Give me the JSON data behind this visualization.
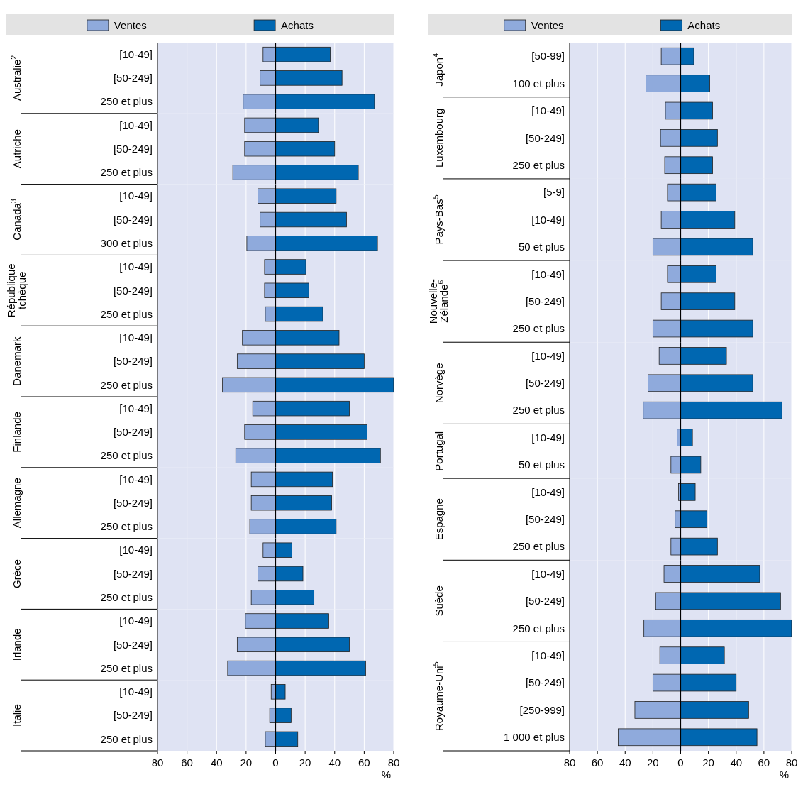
{
  "chart_data": [
    {
      "type": "bar",
      "orientation": "horizontal",
      "stacked": true,
      "ylabel": "Australie$^{2}$",
      "categories": [
        "[10-49]",
        "[50-249]",
        "250 et plus"
      ],
      "series": [
        {
          "name": "Ventes",
          "color": "#8faadc",
          "values": [
            -8.5,
            -10.5,
            -22
          ]
        },
        {
          "name": "Achats",
          "color": "#0067b1",
          "values": [
            37,
            45,
            67
          ]
        }
      ],
      "xlim": [
        -80,
        80
      ],
      "xticks": [
        -80,
        -60,
        -40,
        -20,
        0,
        20,
        40,
        60,
        80
      ],
      "grid": "x",
      "legend": "top",
      "tick_labels": "y"
    },
    {
      "type": "bar",
      "orientation": "horizontal",
      "stacked": true,
      "ylabel": "Autriche",
      "categories": [
        "[10-49]",
        "[50-249]",
        "250 et plus"
      ],
      "series": [
        {
          "color": "#8faadc",
          "values": [
            -21,
            -21,
            -29
          ]
        },
        {
          "color": "#0067b1",
          "values": [
            29,
            40,
            56
          ]
        }
      ],
      "xlim": [
        -80,
        80
      ],
      "xticks": [
        -80,
        -60,
        -40,
        -20,
        0,
        20,
        40,
        60,
        80
      ],
      "grid": "x",
      "tick_labels": "y"
    },
    {
      "type": "bar",
      "orientation": "horizontal",
      "stacked": true,
      "ylabel": "Canada$^{3}$",
      "categories": [
        "[10-49]",
        "[50-249]",
        "300 et plus"
      ],
      "series": [
        {
          "color": "#8faadc",
          "values": [
            -12,
            -10.5,
            -19.5
          ]
        },
        {
          "color": "#0067b1",
          "values": [
            41,
            48,
            69
          ]
        }
      ],
      "xlim": [
        -80,
        80
      ],
      "xticks": [
        -80,
        -60,
        -40,
        -20,
        0,
        20,
        40,
        60,
        80
      ],
      "grid": "x",
      "tick_labels": "y"
    },
    {
      "type": "bar",
      "orientation": "horizontal",
      "stacked": true,
      "ylabel": "République tchèque",
      "categories": [
        "[10-49]",
        "[50-249]",
        "250 et plus"
      ],
      "series": [
        {
          "color": "#8faadc",
          "values": [
            -7.5,
            -7.5,
            -7
          ]
        },
        {
          "color": "#0067b1",
          "values": [
            20.5,
            22.5,
            32
          ]
        }
      ],
      "xlim": [
        -80,
        80
      ],
      "xticks": [
        -80,
        -60,
        -40,
        -20,
        0,
        20,
        40,
        60,
        80
      ],
      "grid": "x",
      "tick_labels": "y"
    },
    {
      "type": "bar",
      "orientation": "horizontal",
      "stacked": true,
      "ylabel": "Danemark",
      "categories": [
        "[10-49]",
        "[50-249]",
        "250 et plus"
      ],
      "series": [
        {
          "color": "#8faadc",
          "values": [
            -22.5,
            -26,
            -36
          ]
        },
        {
          "color": "#0067b1",
          "values": [
            43,
            60,
            80
          ]
        }
      ],
      "xlim": [
        -80,
        80
      ],
      "xticks": [
        -80,
        -60,
        -40,
        -20,
        0,
        20,
        40,
        60,
        80
      ],
      "grid": "x",
      "tick_labels": "y"
    },
    {
      "type": "bar",
      "orientation": "horizontal",
      "stacked": true,
      "ylabel": "Finlande",
      "categories": [
        "[10-49]",
        "[50-249]",
        "250 et plus"
      ],
      "series": [
        {
          "color": "#8faadc",
          "values": [
            -15.5,
            -21,
            -27
          ]
        },
        {
          "color": "#0067b1",
          "values": [
            50,
            62,
            71
          ]
        }
      ],
      "xlim": [
        -80,
        80
      ],
      "xticks": [
        -80,
        -60,
        -40,
        -20,
        0,
        20,
        40,
        60,
        80
      ],
      "grid": "x",
      "tick_labels": "y"
    },
    {
      "type": "bar",
      "orientation": "horizontal",
      "stacked": true,
      "ylabel": "Allemagne",
      "categories": [
        "[10-49]",
        "[50-249]",
        "250 et plus"
      ],
      "series": [
        {
          "color": "#8faadc",
          "values": [
            -16.5,
            -16.5,
            -17.5
          ]
        },
        {
          "color": "#0067b1",
          "values": [
            38.5,
            38,
            41
          ]
        }
      ],
      "xlim": [
        -80,
        80
      ],
      "xticks": [
        -80,
        -60,
        -40,
        -20,
        0,
        20,
        40,
        60,
        80
      ],
      "grid": "x",
      "tick_labels": "y"
    },
    {
      "type": "bar",
      "orientation": "horizontal",
      "stacked": true,
      "ylabel": "Grèce",
      "categories": [
        "[10-49]",
        "[50-249]",
        "250 et plus"
      ],
      "series": [
        {
          "color": "#8faadc",
          "values": [
            -8.5,
            -12,
            -16.5
          ]
        },
        {
          "color": "#0067b1",
          "values": [
            11,
            18.5,
            26
          ]
        }
      ],
      "xlim": [
        -80,
        80
      ],
      "xticks": [
        -80,
        -60,
        -40,
        -20,
        0,
        20,
        40,
        60,
        80
      ],
      "grid": "x",
      "tick_labels": "y"
    },
    {
      "type": "bar",
      "orientation": "horizontal",
      "stacked": true,
      "ylabel": "Irlande",
      "categories": [
        "[10-49]",
        "[50-249]",
        "250 et plus"
      ],
      "series": [
        {
          "color": "#8faadc",
          "values": [
            -20.5,
            -26,
            -32.5
          ]
        },
        {
          "color": "#0067b1",
          "values": [
            36,
            50,
            61
          ]
        }
      ],
      "xlim": [
        -80,
        80
      ],
      "xticks": [
        -80,
        -60,
        -40,
        -20,
        0,
        20,
        40,
        60,
        80
      ],
      "grid": "x",
      "tick_labels": "y"
    },
    {
      "type": "bar",
      "orientation": "horizontal",
      "stacked": true,
      "ylabel": "Italie",
      "xlabel": "%",
      "categories": [
        "[10-49]",
        "[50-249]",
        "250 et plus"
      ],
      "series": [
        {
          "color": "#8faadc",
          "values": [
            -3,
            -4,
            -7
          ]
        },
        {
          "color": "#0067b1",
          "values": [
            6.5,
            10.5,
            15
          ]
        }
      ],
      "xlim": [
        -80,
        80
      ],
      "xticks": [
        {
          "value": -80,
          "label": "80"
        },
        {
          "value": -60,
          "label": "60"
        },
        {
          "value": -40,
          "label": "40"
        },
        {
          "value": -20,
          "label": "20"
        },
        0,
        20,
        40,
        60,
        80
      ],
      "grid": "x"
    },
    {
      "type": "bar",
      "orientation": "horizontal",
      "stacked": true,
      "ylabel": "Japon$^{4}$",
      "categories": [
        "[50-99]",
        "100 et plus"
      ],
      "series": [
        {
          "name": "Ventes",
          "color": "#8faadc",
          "values": [
            -14,
            -25
          ]
        },
        {
          "name": "Achats",
          "color": "#0067b1",
          "values": [
            9.5,
            21
          ]
        }
      ],
      "xlim": [
        -80,
        80
      ],
      "xticks": [
        -80,
        -60,
        -40,
        -20,
        0,
        20,
        40,
        60,
        80
      ],
      "grid": "x",
      "legend": "top",
      "tick_labels": "y"
    },
    {
      "type": "bar",
      "orientation": "horizontal",
      "stacked": true,
      "ylabel": "Luxembourg",
      "categories": [
        "[10-49]",
        "[50-249]",
        "250 et plus"
      ],
      "series": [
        {
          "color": "#8faadc",
          "values": [
            -11,
            -14.5,
            -11.5
          ]
        },
        {
          "color": "#0067b1",
          "values": [
            23,
            26.5,
            23
          ]
        }
      ],
      "xlim": [
        -80,
        80
      ],
      "xticks": [
        -80,
        -60,
        -40,
        -20,
        0,
        20,
        40,
        60,
        80
      ],
      "grid": "x",
      "tick_labels": "y"
    },
    {
      "type": "bar",
      "orientation": "horizontal",
      "stacked": true,
      "ylabel": "Pays-Bas$^{5}$",
      "categories": [
        "[5-9]",
        "[10-49]",
        "50 et plus"
      ],
      "series": [
        {
          "color": "#8faadc",
          "values": [
            -9.5,
            -14,
            -20
          ]
        },
        {
          "color": "#0067b1",
          "values": [
            25.5,
            39,
            52
          ]
        }
      ],
      "xlim": [
        -80,
        80
      ],
      "xticks": [
        -80,
        -60,
        -40,
        -20,
        0,
        20,
        40,
        60,
        80
      ],
      "grid": "x",
      "tick_labels": "y"
    },
    {
      "type": "bar",
      "orientation": "horizontal",
      "stacked": true,
      "ylabel": "Nouvelle-Zélande$^{6}$",
      "categories": [
        "[10-49]",
        "[50-249]",
        "250 et plus"
      ],
      "series": [
        {
          "color": "#8faadc",
          "values": [
            -9.5,
            -14,
            -20
          ]
        },
        {
          "color": "#0067b1",
          "values": [
            25.5,
            39,
            52
          ]
        }
      ],
      "xlim": [
        -80,
        80
      ],
      "xticks": [
        -80,
        -60,
        -40,
        -20,
        0,
        20,
        40,
        60,
        80
      ],
      "grid": "x",
      "tick_labels": "y"
    },
    {
      "type": "bar",
      "orientation": "horizontal",
      "stacked": true,
      "ylabel": "Norvège",
      "categories": [
        "[10-49]",
        "[50-249]",
        "250 et plus"
      ],
      "series": [
        {
          "color": "#8faadc",
          "values": [
            -15.5,
            -23.5,
            -27
          ]
        },
        {
          "color": "#0067b1",
          "values": [
            33,
            52,
            73
          ]
        }
      ],
      "xlim": [
        -80,
        80
      ],
      "xticks": [
        -80,
        -60,
        -40,
        -20,
        0,
        20,
        40,
        60,
        80
      ],
      "grid": "x",
      "tick_labels": "y"
    },
    {
      "type": "bar",
      "orientation": "horizontal",
      "stacked": true,
      "ylabel": "Portugal",
      "categories": [
        "[10-49]",
        "50 et plus"
      ],
      "series": [
        {
          "color": "#8faadc",
          "values": [
            -2.5,
            -7
          ]
        },
        {
          "color": "#0067b1",
          "values": [
            8.5,
            14.5
          ]
        }
      ],
      "xlim": [
        -80,
        80
      ],
      "xticks": [
        -80,
        -60,
        -40,
        -20,
        0,
        20,
        40,
        60,
        80
      ],
      "grid": "x",
      "tick_labels": "y"
    },
    {
      "type": "bar",
      "orientation": "horizontal",
      "stacked": true,
      "ylabel": "Espagne",
      "categories": [
        "[10-49]",
        "[50-249]",
        "250 et plus"
      ],
      "series": [
        {
          "color": "#8faadc",
          "values": [
            -1.5,
            -4,
            -7
          ]
        },
        {
          "color": "#0067b1",
          "values": [
            10.5,
            19,
            26.5
          ]
        }
      ],
      "xlim": [
        -80,
        80
      ],
      "xticks": [
        -80,
        -60,
        -40,
        -20,
        0,
        20,
        40,
        60,
        80
      ],
      "grid": "x",
      "tick_labels": "y"
    },
    {
      "type": "bar",
      "orientation": "horizontal",
      "stacked": true,
      "ylabel": "Suède",
      "categories": [
        "[10-49]",
        "[50-249]",
        "250 et plus"
      ],
      "series": [
        {
          "color": "#8faadc",
          "values": [
            -12,
            -18,
            -26.5
          ]
        },
        {
          "color": "#0067b1",
          "values": [
            57,
            72,
            80
          ]
        }
      ],
      "xlim": [
        -80,
        80
      ],
      "xticks": [
        -80,
        -60,
        -40,
        -20,
        0,
        20,
        40,
        60,
        80
      ],
      "grid": "x",
      "tick_labels": "y"
    },
    {
      "type": "bar",
      "orientation": "horizontal",
      "stacked": true,
      "ylabel": "Royaume-Uni$^{5}$",
      "xlabel": "%",
      "categories": [
        "[10-49]",
        "[50-249]",
        "[250-999]",
        "1 000 et plus"
      ],
      "series": [
        {
          "color": "#8faadc",
          "values": [
            -15,
            -20,
            -33,
            -45
          ]
        },
        {
          "color": "#0067b1",
          "values": [
            31.5,
            40,
            49,
            55
          ]
        }
      ],
      "xlim": [
        -80,
        80
      ],
      "xticks": [
        {
          "value": -80,
          "label": "80"
        },
        {
          "value": -60,
          "label": "60"
        },
        {
          "value": -40,
          "label": "40"
        },
        {
          "value": -20,
          "label": "20"
        },
        0,
        20,
        40,
        60,
        80
      ],
      "grid": "x"
    }
  ]
}
